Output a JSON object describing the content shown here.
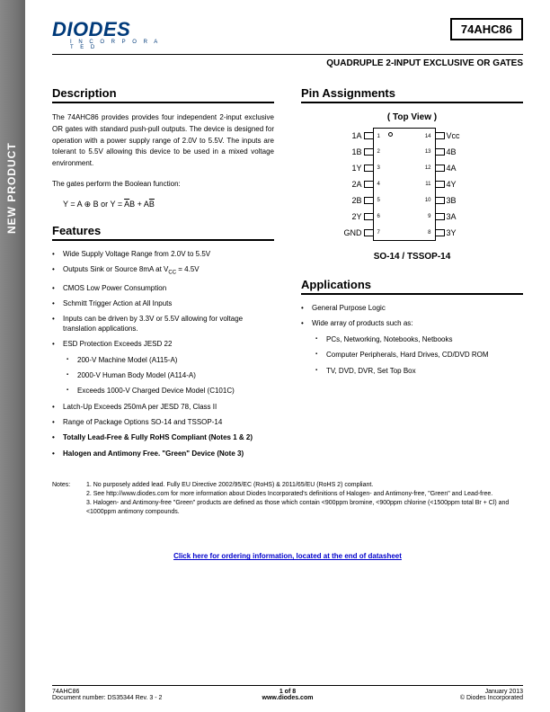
{
  "sidebar_label": "NEW PRODUCT",
  "logo": {
    "main": "DIODES",
    "sub": "I N C O R P O R A T E D"
  },
  "part_number": "74AHC86",
  "subtitle": "QUADRUPLE 2-INPUT EXCLUSIVE OR GATES",
  "description": {
    "heading": "Description",
    "para1": "The 74AHC86 provides provides four independent 2-input exclusive OR gates with standard push-pull outputs.  The device is designed for operation with a power supply range of 2.0V to 5.5V. The inputs are tolerant to 5.5V allowing this device to be used in a mixed voltage environment.",
    "para2": "The gates perform the Boolean function:",
    "formula_y": "Y = A ⊕ B  or  Y = ",
    "formula_ab1": "A",
    "formula_b1": "B + A",
    "formula_b2": "B"
  },
  "features": {
    "heading": "Features",
    "items": [
      "Wide Supply Voltage Range from 2.0V to 5.5V",
      "Outputs Sink or Source 8mA at V__CC__ = 4.5V",
      "CMOS Low Power Consumption",
      "Schmitt Trigger Action at All Inputs",
      "Inputs can be driven by 3.3V or 5.5V allowing for voltage translation applications.",
      "ESD Protection Exceeds JESD 22",
      "Latch-Up Exceeds 250mA per JESD 78, Class II",
      "Range of Package Options SO-14 and TSSOP-14",
      "Totally Lead-Free & Fully RoHS Compliant (Notes 1 & 2)",
      "Halogen and Antimony Free. \"Green\" Device (Note 3)"
    ],
    "esd_sub": [
      "200-V Machine Model (A115-A)",
      "2000-V Human Body Model (A114-A)",
      "Exceeds 1000-V Charged Device Model (C101C)"
    ]
  },
  "pin_assignments": {
    "heading": "Pin Assignments",
    "topview": "( Top View )",
    "package": "SO-14 / TSSOP-14",
    "left_pins": [
      "1A",
      "1B",
      "1Y",
      "2A",
      "2B",
      "2Y",
      "GND"
    ],
    "left_nums": [
      "1",
      "2",
      "3",
      "4",
      "5",
      "6",
      "7"
    ],
    "right_nums": [
      "14",
      "13",
      "12",
      "11",
      "10",
      "9",
      "8"
    ],
    "right_pins": [
      "Vcc",
      "4B",
      "4A",
      "4Y",
      "3B",
      "3A",
      "3Y"
    ]
  },
  "applications": {
    "heading": "Applications",
    "items": [
      "General Purpose Logic",
      "Wide array of products such as:"
    ],
    "sub": [
      "PCs, Networking, Notebooks, Netbooks",
      "Computer Peripherals, Hard Drives, CD/DVD ROM",
      "TV, DVD, DVR, Set Top Box"
    ]
  },
  "notes": {
    "label": "Notes:",
    "lines": [
      "1. No purposely added lead. Fully EU Directive 2002/95/EC (RoHS) & 2011/65/EU (RoHS 2) compliant.",
      "2. See http://www.diodes.com for more information about Diodes Incorporated's definitions of Halogen- and Antimony-free, \"Green\" and Lead-free.",
      "3. Halogen- and Antimony-free \"Green\" products are defined as those which contain <900ppm bromine, <900ppm chlorine (<1500ppm total Br + Cl) and <1000ppm antimony compounds."
    ]
  },
  "order_link": "Click here for ordering information, located at the end of datasheet",
  "footer": {
    "left1": "74AHC86",
    "left2": "Document number: DS35344 Rev. 3 - 2",
    "center1": "1 of 8",
    "center2": "www.diodes.com",
    "right1": "January 2013",
    "right2": "© Diodes Incorporated"
  },
  "colors": {
    "brand_blue": "#003a7a",
    "link_blue": "#0000cc",
    "sidebar_grey": "#777777"
  }
}
